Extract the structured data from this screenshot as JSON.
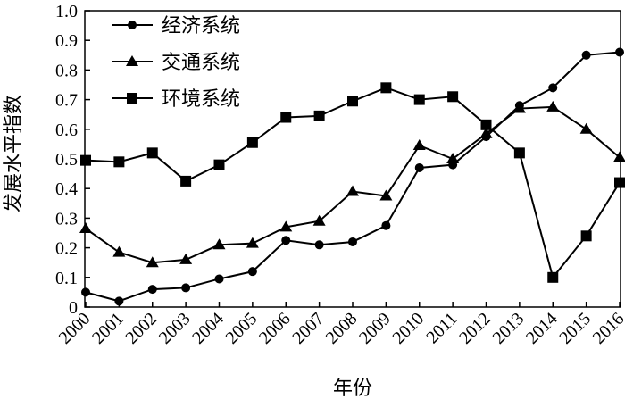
{
  "chart_data": {
    "type": "line",
    "title": "",
    "xlabel": "年份",
    "ylabel": "发展水平指数",
    "categories": [
      "2000",
      "2001",
      "2002",
      "2003",
      "2004",
      "2005",
      "2006",
      "2007",
      "2008",
      "2009",
      "2010",
      "2011",
      "2012",
      "2013",
      "2014",
      "2015",
      "2016"
    ],
    "ylim": [
      0,
      1.0
    ],
    "yticks": [
      "0",
      "0.1",
      "0.2",
      "0.3",
      "0.4",
      "0.5",
      "0.6",
      "0.7",
      "0.8",
      "0.9",
      "1.0"
    ],
    "grid": false,
    "legend": "top-left",
    "series": [
      {
        "name": "经济系统",
        "marker": "circle",
        "color": "#000000",
        "values": [
          0.05,
          0.02,
          0.06,
          0.065,
          0.095,
          0.12,
          0.225,
          0.21,
          0.22,
          0.275,
          0.47,
          0.48,
          0.575,
          0.68,
          0.74,
          0.85,
          0.86
        ]
      },
      {
        "name": "交通系统",
        "marker": "triangle",
        "color": "#000000",
        "values": [
          0.265,
          0.185,
          0.15,
          0.16,
          0.21,
          0.215,
          0.27,
          0.29,
          0.39,
          0.375,
          0.545,
          0.5,
          0.585,
          0.67,
          0.675,
          0.6,
          0.505
        ]
      },
      {
        "name": "环境系统",
        "marker": "square",
        "color": "#000000",
        "values": [
          0.495,
          0.49,
          0.52,
          0.425,
          0.48,
          0.555,
          0.64,
          0.645,
          0.695,
          0.74,
          0.7,
          0.71,
          0.615,
          0.52,
          0.1,
          0.24,
          0.42
        ]
      }
    ]
  }
}
